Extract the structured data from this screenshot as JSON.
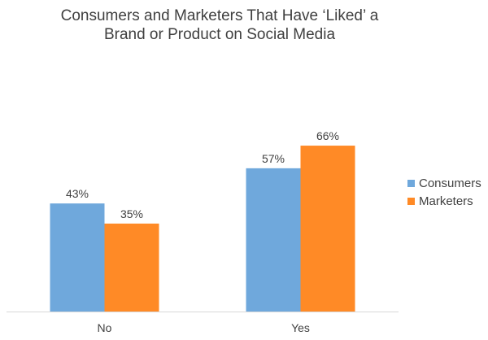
{
  "chart_data": {
    "type": "bar",
    "title": "Consumers and Marketers That Have ‘Liked’ a Brand or Product on Social Media",
    "categories": [
      "No",
      "Yes"
    ],
    "series": [
      {
        "name": "Consumers",
        "values": [
          43,
          57
        ],
        "labels": [
          "43%",
          "57%"
        ],
        "color": "#6FA8DC"
      },
      {
        "name": "Marketers",
        "values": [
          35,
          66
        ],
        "labels": [
          "35%",
          "66%"
        ],
        "color": "#FF8A26"
      }
    ],
    "xlabel": "",
    "ylabel": "",
    "ylim": [
      0,
      70
    ],
    "grid": false,
    "legend_position": "right"
  }
}
